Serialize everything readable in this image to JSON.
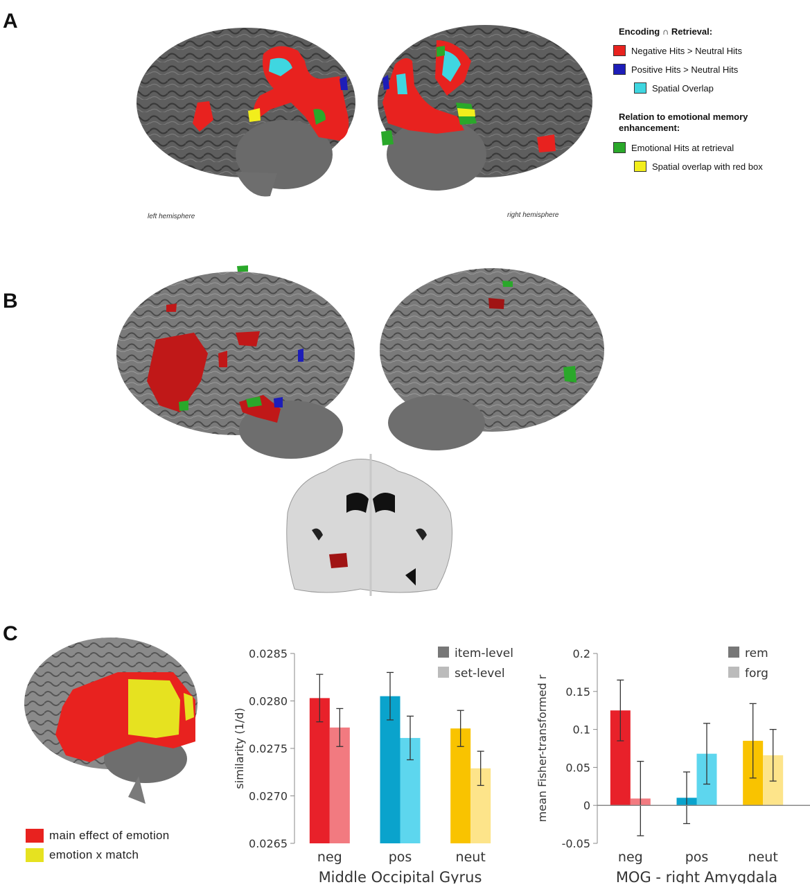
{
  "panels": {
    "a": "A",
    "b": "B",
    "c": "C"
  },
  "panel_a": {
    "legend_title_1": "Encoding ∩ Retrieval:",
    "legend_items_1": [
      {
        "label": "Negative Hits > Neutral Hits",
        "color": "#e8221f"
      },
      {
        "label": "Positive Hits > Neutral Hits",
        "color": "#1d1db8"
      },
      {
        "label": "Spatial Overlap",
        "color": "#3fd6e0"
      }
    ],
    "legend_title_2": "Relation to emotional memory enhancement:",
    "legend_items_2": [
      {
        "label": "Emotional Hits at retrieval",
        "color": "#2aa82a"
      },
      {
        "label": "Spatial overlap with red box",
        "color": "#f2ee1c"
      }
    ],
    "left_label": "left hemisphere",
    "right_label": "right  hemisphere"
  },
  "panel_c": {
    "legend": [
      {
        "label": "main effect of emotion",
        "color": "#e8221f"
      },
      {
        "label": "emotion x match",
        "color": "#e6e220"
      }
    ]
  },
  "colors": {
    "neg": "#e8212a",
    "neg_light": "#f27a80",
    "pos": "#0aa3cc",
    "pos_light": "#5dd6ee",
    "neut": "#f9c300",
    "neut_light": "#fde48a",
    "item": "#777777",
    "set": "#bbbbbb"
  },
  "chart_data": [
    {
      "type": "bar",
      "title": "Middle Occipital Gyrus",
      "xlabel": "Middle Occipital Gyrus",
      "ylabel": "similarity (1/d)",
      "categories": [
        "neg",
        "pos",
        "neut"
      ],
      "ylim": [
        0.0265,
        0.0285
      ],
      "yticks": [
        "0.0285",
        "0.0280",
        "0.0275",
        "0.0270",
        "0.0265"
      ],
      "legend_position": "top-right",
      "series": [
        {
          "name": "item-level",
          "values": [
            0.02803,
            0.02805,
            0.02771
          ],
          "errors": [
            0.00025,
            0.00025,
            0.00019
          ]
        },
        {
          "name": "set-level",
          "values": [
            0.02772,
            0.02761,
            0.02729
          ],
          "errors": [
            0.0002,
            0.00023,
            0.00018
          ]
        }
      ]
    },
    {
      "type": "bar",
      "title": "MOG - right Amygdala",
      "xlabel": "MOG - right Amygdala",
      "ylabel": "mean Fisher-transformed r",
      "categories": [
        "neg",
        "pos",
        "neut"
      ],
      "ylim": [
        -0.05,
        0.2
      ],
      "yticks": [
        "0.2",
        "0.15",
        "0.1",
        "0.05",
        "0",
        "-0.05"
      ],
      "legend_position": "top-right",
      "series": [
        {
          "name": "rem",
          "values": [
            0.125,
            0.01,
            0.085
          ],
          "errors": [
            0.04,
            0.034,
            0.049
          ]
        },
        {
          "name": "forg",
          "values": [
            0.009,
            0.068,
            0.066
          ],
          "errors": [
            0.049,
            0.04,
            0.034
          ]
        }
      ]
    }
  ]
}
